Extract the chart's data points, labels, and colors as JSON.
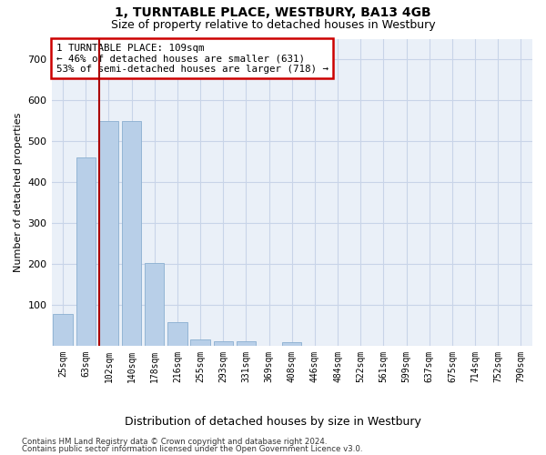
{
  "title1": "1, TURNTABLE PLACE, WESTBURY, BA13 4GB",
  "title2": "Size of property relative to detached houses in Westbury",
  "xlabel": "Distribution of detached houses by size in Westbury",
  "ylabel": "Number of detached properties",
  "categories": [
    "25sqm",
    "63sqm",
    "102sqm",
    "140sqm",
    "178sqm",
    "216sqm",
    "255sqm",
    "293sqm",
    "331sqm",
    "369sqm",
    "408sqm",
    "446sqm",
    "484sqm",
    "522sqm",
    "561sqm",
    "599sqm",
    "637sqm",
    "675sqm",
    "714sqm",
    "752sqm",
    "790sqm"
  ],
  "bar_heights": [
    78,
    460,
    548,
    548,
    203,
    57,
    15,
    10,
    10,
    0,
    8,
    0,
    0,
    0,
    0,
    0,
    0,
    0,
    0,
    0,
    0
  ],
  "bar_color": "#b8cfe8",
  "vline_x_idx": 2,
  "vline_color": "#aa0000",
  "annotation_lines": [
    "1 TURNTABLE PLACE: 109sqm",
    "← 46% of detached houses are smaller (631)",
    "53% of semi-detached houses are larger (718) →"
  ],
  "annotation_box_color": "#cc0000",
  "ylim": [
    0,
    750
  ],
  "yticks": [
    0,
    100,
    200,
    300,
    400,
    500,
    600,
    700
  ],
  "grid_color": "#c8d4e8",
  "bg_color": "#eaf0f8",
  "footnote1": "Contains HM Land Registry data © Crown copyright and database right 2024.",
  "footnote2": "Contains public sector information licensed under the Open Government Licence v3.0."
}
